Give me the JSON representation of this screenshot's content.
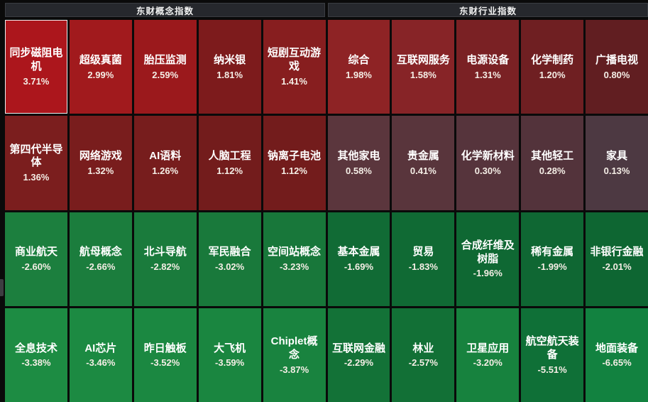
{
  "page": {
    "background": "#0a0a0a",
    "header_background": "#26282d",
    "gap_color": "#0a0a0a",
    "selected_border_color": "#f0f0f0"
  },
  "chart_data": {
    "type": "heatmap",
    "value_format": "percent",
    "color_rule": "red shades = positive change, green shades = negative change; brightness scales with magnitude",
    "grid": {
      "columns_per_section": 5,
      "rows": 4
    },
    "sections": [
      {
        "title": "东财概念指数",
        "tiles": [
          {
            "name": "同步磁阻电机",
            "value": 3.71,
            "display": "3.71%",
            "color": "#ac161c",
            "selected": true
          },
          {
            "name": "超级真菌",
            "value": 2.99,
            "display": "2.99%",
            "color": "#a11a1d",
            "selected": false
          },
          {
            "name": "胎压监测",
            "value": 2.59,
            "display": "2.59%",
            "color": "#9b191c",
            "selected": false
          },
          {
            "name": "纳米银",
            "value": 1.81,
            "display": "1.81%",
            "color": "#7d1b1c",
            "selected": false
          },
          {
            "name": "短剧互动游戏",
            "value": 1.41,
            "display": "1.41%",
            "color": "#871e1f",
            "selected": false
          },
          {
            "name": "第四代半导体",
            "value": 1.36,
            "display": "1.36%",
            "color": "#7b1e1e",
            "selected": false
          },
          {
            "name": "网络游戏",
            "value": 1.32,
            "display": "1.32%",
            "color": "#791d1d",
            "selected": false
          },
          {
            "name": "AI语料",
            "value": 1.26,
            "display": "1.26%",
            "color": "#771d1d",
            "selected": false
          },
          {
            "name": "人脑工程",
            "value": 1.12,
            "display": "1.12%",
            "color": "#731c1c",
            "selected": false
          },
          {
            "name": "钠离子电池",
            "value": 1.12,
            "display": "1.12%",
            "color": "#731c1c",
            "selected": false
          },
          {
            "name": "商业航天",
            "value": -2.6,
            "display": "-2.60%",
            "color": "#1c7f3e",
            "selected": false
          },
          {
            "name": "航母概念",
            "value": -2.66,
            "display": "-2.66%",
            "color": "#1b7d3d",
            "selected": false
          },
          {
            "name": "北斗导航",
            "value": -2.82,
            "display": "-2.82%",
            "color": "#1a7b3c",
            "selected": false
          },
          {
            "name": "军民融合",
            "value": -3.02,
            "display": "-3.02%",
            "color": "#19793b",
            "selected": false
          },
          {
            "name": "空间站概念",
            "value": -3.23,
            "display": "-3.23%",
            "color": "#18773a",
            "selected": false
          },
          {
            "name": "全息技术",
            "value": -3.38,
            "display": "-3.38%",
            "color": "#1d8c43",
            "selected": false
          },
          {
            "name": "AI芯片",
            "value": -3.46,
            "display": "-3.46%",
            "color": "#1c8a42",
            "selected": false
          },
          {
            "name": "昨日触板",
            "value": -3.52,
            "display": "-3.52%",
            "color": "#1b8841",
            "selected": false
          },
          {
            "name": "大飞机",
            "value": -3.59,
            "display": "-3.59%",
            "color": "#1a8640",
            "selected": false
          },
          {
            "name": "Chiplet概念",
            "value": -3.87,
            "display": "-3.87%",
            "color": "#19833f",
            "selected": false
          }
        ]
      },
      {
        "title": "东财行业指数",
        "tiles": [
          {
            "name": "综合",
            "value": 1.98,
            "display": "1.98%",
            "color": "#8e2325",
            "selected": false
          },
          {
            "name": "互联网服务",
            "value": 1.58,
            "display": "1.58%",
            "color": "#872427",
            "selected": false
          },
          {
            "name": "电源设备",
            "value": 1.31,
            "display": "1.31%",
            "color": "#7a2124",
            "selected": false
          },
          {
            "name": "化学制药",
            "value": 1.2,
            "display": "1.20%",
            "color": "#6f1f22",
            "selected": false
          },
          {
            "name": "广播电视",
            "value": 0.8,
            "display": "0.80%",
            "color": "#611e21",
            "selected": false
          },
          {
            "name": "其他家电",
            "value": 0.58,
            "display": "0.58%",
            "color": "#5b363d",
            "selected": false
          },
          {
            "name": "贵金属",
            "value": 0.41,
            "display": "0.41%",
            "color": "#59353c",
            "selected": false
          },
          {
            "name": "化学新材料",
            "value": 0.3,
            "display": "0.30%",
            "color": "#56343c",
            "selected": false
          },
          {
            "name": "其他轻工",
            "value": 0.28,
            "display": "0.28%",
            "color": "#53333b",
            "selected": false
          },
          {
            "name": "家具",
            "value": 0.13,
            "display": "0.13%",
            "color": "#4d3942",
            "selected": false
          },
          {
            "name": "基本金属",
            "value": -1.69,
            "display": "-1.69%",
            "color": "#116b35",
            "selected": false
          },
          {
            "name": "贸易",
            "value": -1.83,
            "display": "-1.83%",
            "color": "#106a34",
            "selected": false
          },
          {
            "name": "合成纤维及树脂",
            "value": -1.96,
            "display": "-1.96%",
            "color": "#0f6833",
            "selected": false
          },
          {
            "name": "稀有金属",
            "value": -1.99,
            "display": "-1.99%",
            "color": "#0f6733",
            "selected": false
          },
          {
            "name": "非银行金融",
            "value": -2.01,
            "display": "-2.01%",
            "color": "#0e6632",
            "selected": false
          },
          {
            "name": "互联网金融",
            "value": -2.29,
            "display": "-2.29%",
            "color": "#137237",
            "selected": false
          },
          {
            "name": "林业",
            "value": -2.57,
            "display": "-2.57%",
            "color": "#127036",
            "selected": false
          },
          {
            "name": "卫星应用",
            "value": -3.2,
            "display": "-3.20%",
            "color": "#17823e",
            "selected": false
          },
          {
            "name": "航空航天装备",
            "value": -5.51,
            "display": "-5.51%",
            "color": "#0f7037",
            "selected": false
          },
          {
            "name": "地面装备",
            "value": -6.65,
            "display": "-6.65%",
            "color": "#128240",
            "selected": false
          }
        ]
      }
    ]
  }
}
